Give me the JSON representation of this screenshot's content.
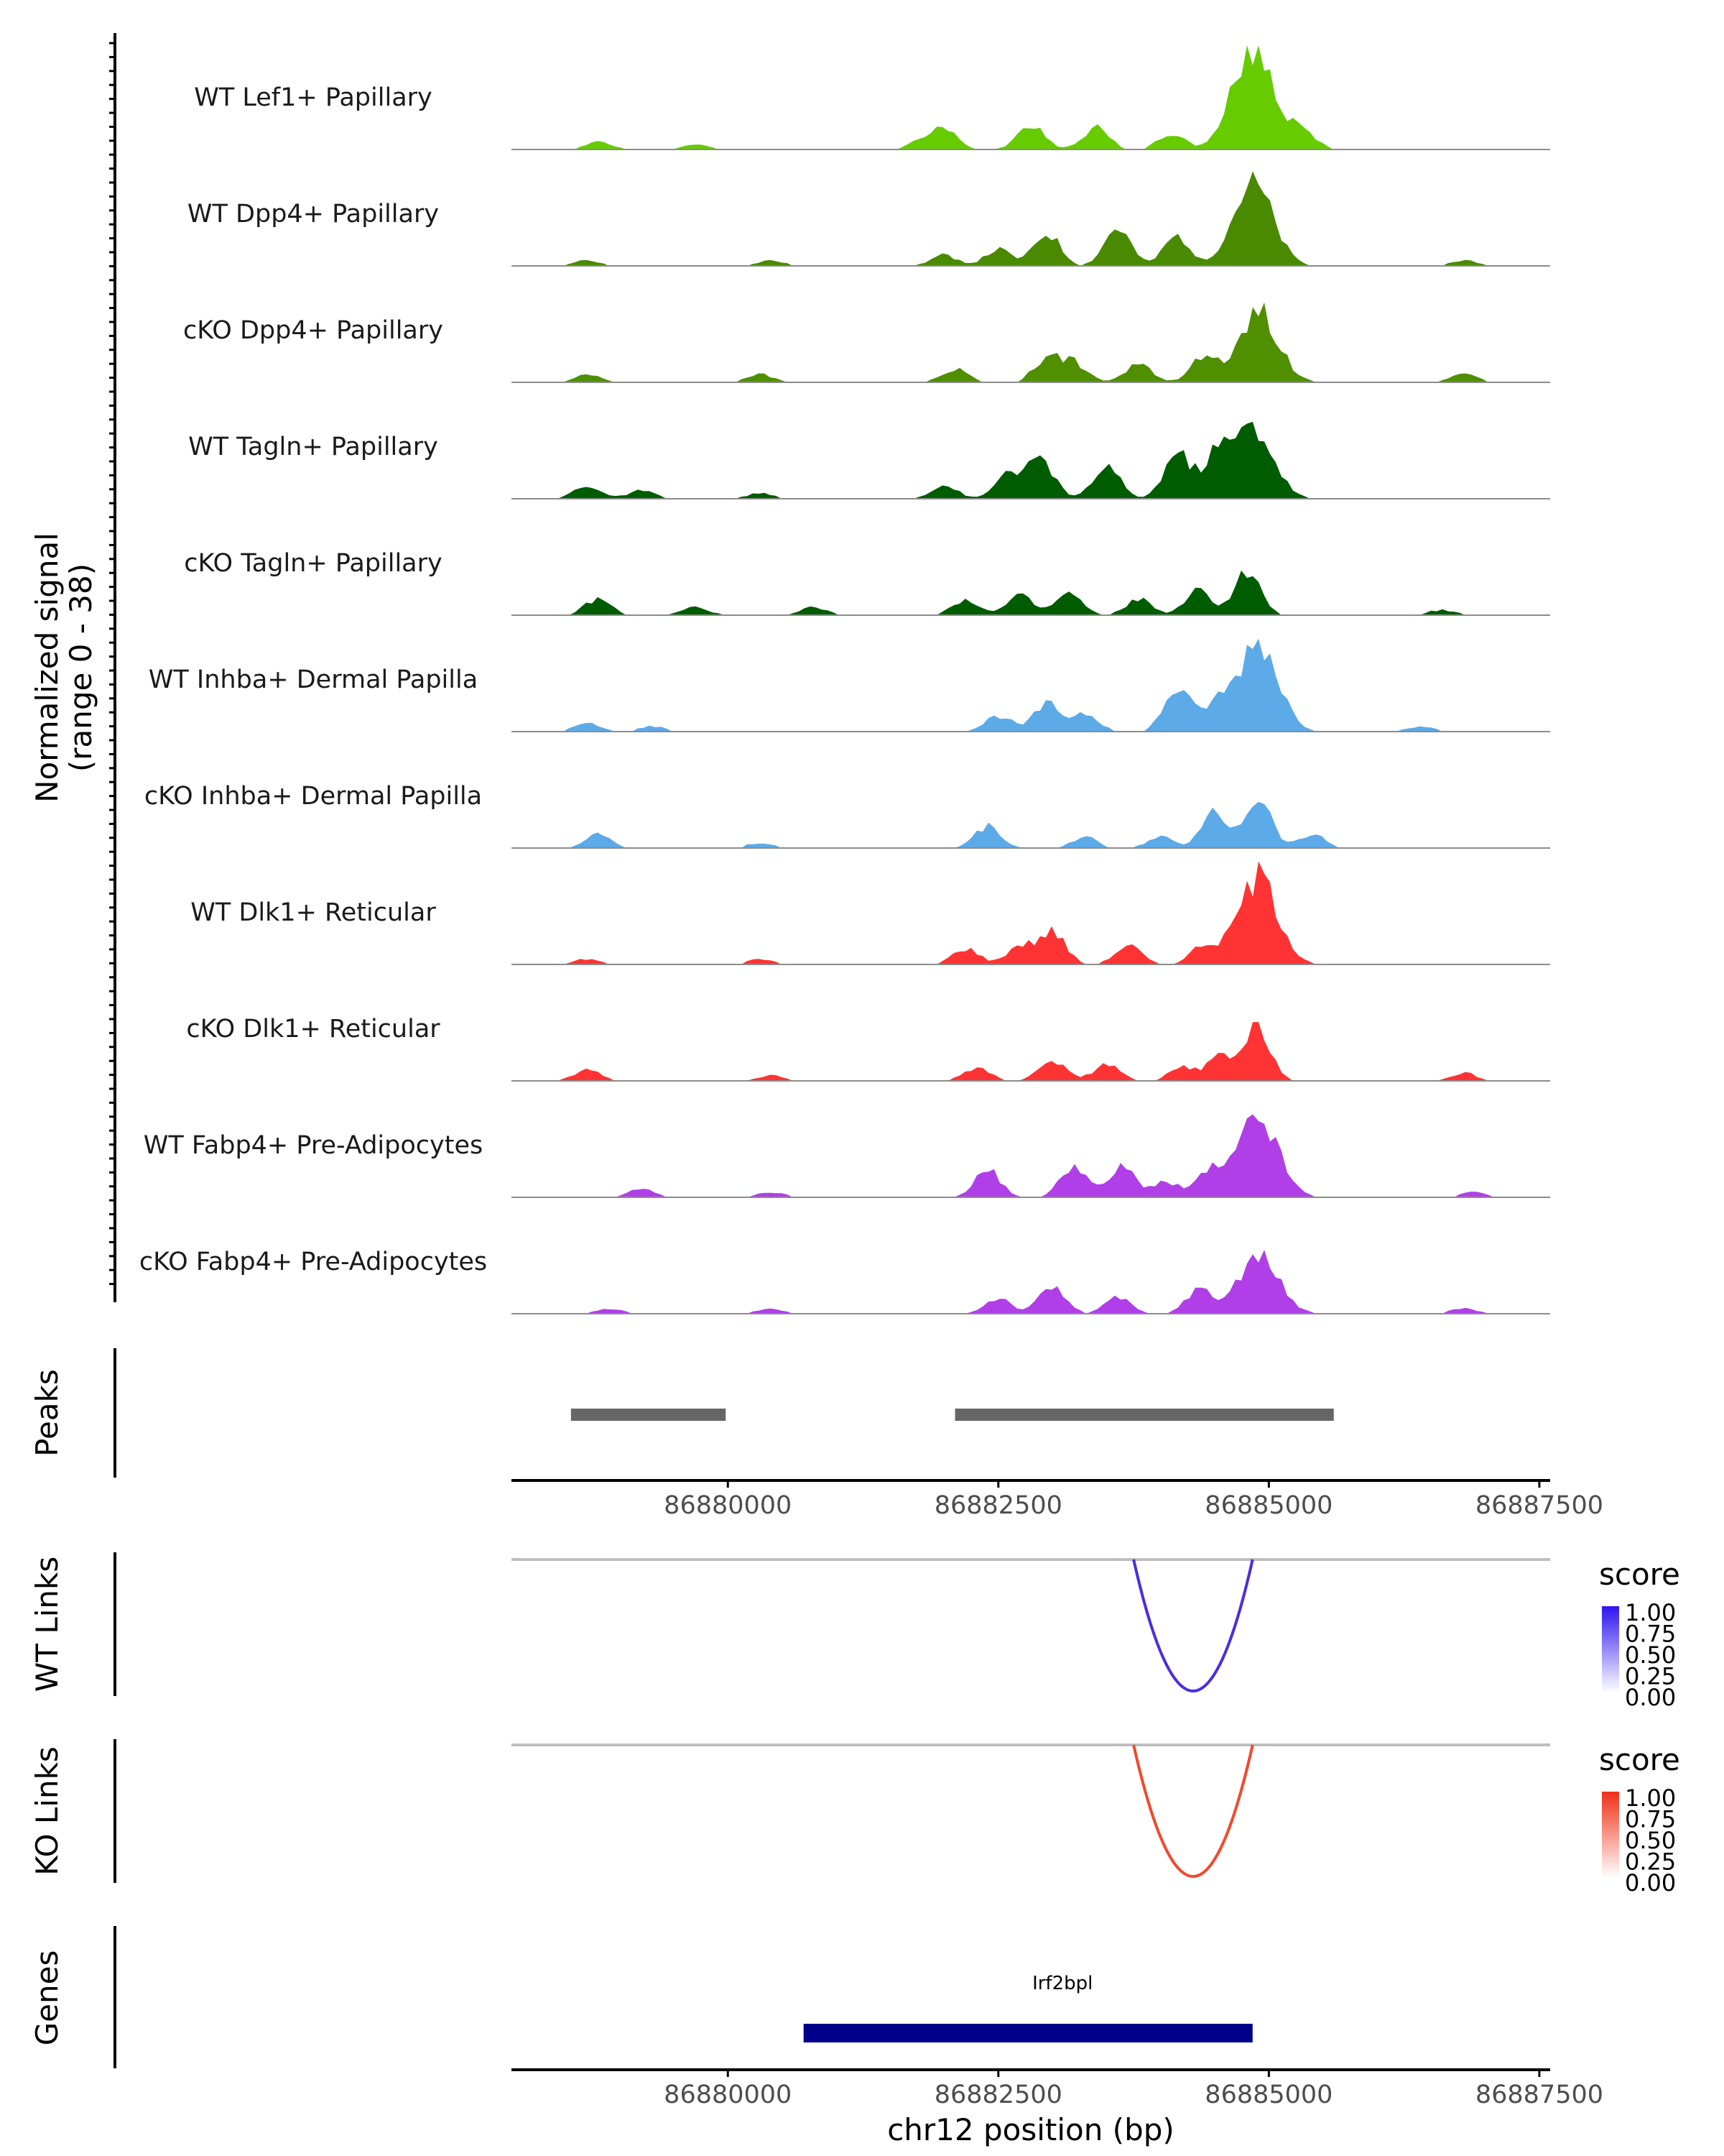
{
  "chart_data": {
    "type": "area",
    "title": "",
    "region": {
      "chrom": "chr12",
      "start": 86878000,
      "end": 86887600
    },
    "xlabel": "chr12 position (bp)",
    "xticks": [
      86880000,
      86882500,
      86885000,
      86887500
    ],
    "xtick_labels": [
      "86880000",
      "86882500",
      "86885000",
      "86887500"
    ],
    "coverage": {
      "ylabel": "Normalized signal\n(range 0 - 38)",
      "ylabel_lines": [
        "Normalized signal",
        "(range 0 - 38)"
      ],
      "ylim": [
        0,
        38
      ],
      "tracks": [
        {
          "name": "WT Lef1+ Papillary",
          "color": "#66CC00",
          "peaks": [
            [
              86882000,
              7
            ],
            [
              86882800,
              10
            ],
            [
              86883400,
              8
            ],
            [
              86884100,
              6
            ],
            [
              86884850,
              38
            ],
            [
              86885300,
              8
            ],
            [
              86878800,
              3
            ],
            [
              86879700,
              2
            ],
            [
              86881800,
              3
            ]
          ]
        },
        {
          "name": "WT Dpp4+ Papillary",
          "color": "#4A8A00",
          "peaks": [
            [
              86882000,
              4
            ],
            [
              86882500,
              6
            ],
            [
              86882950,
              12
            ],
            [
              86883600,
              14
            ],
            [
              86884150,
              11
            ],
            [
              86884850,
              30
            ],
            [
              86878700,
              2
            ],
            [
              86880400,
              2
            ],
            [
              86886800,
              2
            ]
          ]
        },
        {
          "name": "cKO Dpp4+ Papillary",
          "color": "#4F8F00",
          "peaks": [
            [
              86882100,
              5
            ],
            [
              86882950,
              9
            ],
            [
              86883200,
              7
            ],
            [
              86883800,
              7
            ],
            [
              86884400,
              9
            ],
            [
              86884900,
              26
            ],
            [
              86878700,
              3
            ],
            [
              86880300,
              3
            ],
            [
              86886800,
              3
            ]
          ]
        },
        {
          "name": "WT Tagln+ Papillary",
          "color": "#005C00",
          "peaks": [
            [
              86882000,
              5
            ],
            [
              86882600,
              10
            ],
            [
              86882900,
              14
            ],
            [
              86883500,
              12
            ],
            [
              86884150,
              17
            ],
            [
              86884500,
              14
            ],
            [
              86884850,
              27
            ],
            [
              86878700,
              5
            ],
            [
              86879200,
              3
            ],
            [
              86880300,
              2
            ]
          ]
        },
        {
          "name": "cKO Tagln+ Papillary",
          "color": "#005C00",
          "peaks": [
            [
              86882200,
              6
            ],
            [
              86882700,
              7
            ],
            [
              86883150,
              8
            ],
            [
              86883800,
              6
            ],
            [
              86884350,
              9
            ],
            [
              86884800,
              16
            ],
            [
              86878800,
              6
            ],
            [
              86879700,
              3
            ],
            [
              86880800,
              3
            ],
            [
              86886600,
              2
            ]
          ]
        },
        {
          "name": "WT Inhba+ Dermal Papilla",
          "color": "#5DAAE8",
          "peaks": [
            [
              86882500,
              6
            ],
            [
              86882950,
              10
            ],
            [
              86883300,
              7
            ],
            [
              86884150,
              16
            ],
            [
              86884500,
              9
            ],
            [
              86884900,
              34
            ],
            [
              86878700,
              3
            ],
            [
              86879300,
              2
            ],
            [
              86886400,
              2
            ]
          ]
        },
        {
          "name": "cKO Inhba+ Dermal Papilla",
          "color": "#5DAAE8",
          "peaks": [
            [
              86882400,
              8
            ],
            [
              86883300,
              4
            ],
            [
              86884000,
              4
            ],
            [
              86884500,
              13
            ],
            [
              86884900,
              19
            ],
            [
              86885400,
              5
            ],
            [
              86878800,
              5
            ],
            [
              86880300,
              2
            ]
          ]
        },
        {
          "name": "WT Dlk1+ Reticular",
          "color": "#FF3333",
          "peaks": [
            [
              86882200,
              6
            ],
            [
              86882700,
              7
            ],
            [
              86883000,
              12
            ],
            [
              86883700,
              7
            ],
            [
              86884400,
              7
            ],
            [
              86884900,
              32
            ],
            [
              86878700,
              2
            ],
            [
              86880300,
              2
            ]
          ]
        },
        {
          "name": "cKO Dlk1+ Reticular",
          "color": "#FF3333",
          "peaks": [
            [
              86882300,
              5
            ],
            [
              86883000,
              8
            ],
            [
              86883500,
              6
            ],
            [
              86884200,
              5
            ],
            [
              86884550,
              9
            ],
            [
              86884900,
              20
            ],
            [
              86878700,
              4
            ],
            [
              86880400,
              2
            ],
            [
              86886800,
              3
            ]
          ]
        },
        {
          "name": "WT Fabp4+ Pre-Adipocytes",
          "color": "#B03FE8",
          "peaks": [
            [
              86882400,
              10
            ],
            [
              86883200,
              12
            ],
            [
              86883650,
              11
            ],
            [
              86884050,
              6
            ],
            [
              86884450,
              9
            ],
            [
              86884900,
              29
            ],
            [
              86879200,
              3
            ],
            [
              86880400,
              2
            ],
            [
              86886900,
              2
            ]
          ]
        },
        {
          "name": "cKO Fabp4+ Pre-Adipocytes",
          "color": "#B03FE8",
          "peaks": [
            [
              86882500,
              6
            ],
            [
              86883000,
              10
            ],
            [
              86883600,
              6
            ],
            [
              86884350,
              9
            ],
            [
              86884900,
              22
            ],
            [
              86878900,
              2
            ],
            [
              86880400,
              2
            ],
            [
              86886800,
              2
            ]
          ]
        }
      ]
    },
    "peaks_track": {
      "label": "Peaks",
      "color": "#666666",
      "intervals": [
        [
          86878550,
          86879980
        ],
        [
          86882100,
          86885600
        ]
      ]
    },
    "link_tracks": [
      {
        "label": "WT Links",
        "legend_title": "score",
        "color": "#4A2EE0",
        "gradient": [
          "#FFFFFF",
          "#2D14F0"
        ],
        "legend_ticks": [
          "1.00",
          "0.75",
          "0.50",
          "0.25",
          "0.00"
        ],
        "links": [
          {
            "start": 86883750,
            "end": 86884850,
            "score": 0.8
          }
        ]
      },
      {
        "label": "KO Links",
        "legend_title": "score",
        "color": "#F04A2E",
        "gradient": [
          "#FFFFFF",
          "#F03018"
        ],
        "legend_ticks": [
          "1.00",
          "0.75",
          "0.50",
          "0.25",
          "0.00"
        ],
        "links": [
          {
            "start": 86883750,
            "end": 86884850,
            "score": 0.8
          }
        ]
      }
    ],
    "genes_track": {
      "label": "Genes",
      "color": "#00008B",
      "genes": [
        {
          "name": "Irf2bpl",
          "start": 86880700,
          "end": 86884850
        }
      ]
    }
  }
}
